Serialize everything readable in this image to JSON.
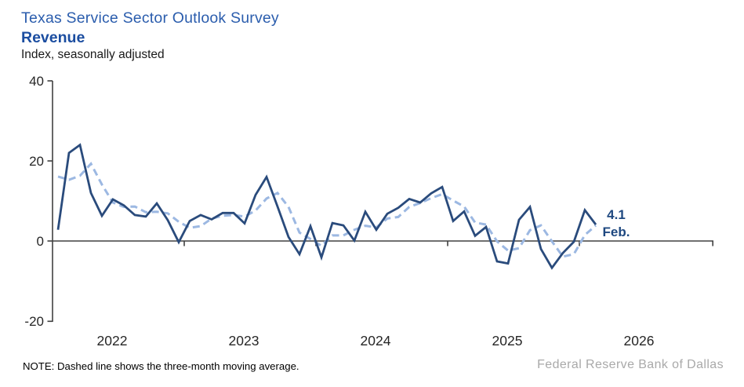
{
  "header": {
    "title": "Texas Service Sector Outlook Survey",
    "subtitle": "Revenue",
    "axis_units_note": "Index, seasonally adjusted"
  },
  "chart_data": {
    "type": "line",
    "title": "Texas Service Sector Outlook Survey — Revenue",
    "ylabel": "Index, seasonally adjusted",
    "ylim": [
      -20,
      40
    ],
    "y_tick_labels": [
      "40",
      "20",
      "0",
      "-20"
    ],
    "x_tick_labels": [
      "2022",
      "2023",
      "2024",
      "2025",
      "2026"
    ],
    "grid": "off",
    "legend": "none (dashed line explained in footnote)",
    "categories": [
      "2022-01",
      "2022-02",
      "2022-03",
      "2022-04",
      "2022-05",
      "2022-06",
      "2022-07",
      "2022-08",
      "2022-09",
      "2022-10",
      "2022-11",
      "2022-12",
      "2023-01",
      "2023-02",
      "2023-03",
      "2023-04",
      "2023-05",
      "2023-06",
      "2023-07",
      "2023-08",
      "2023-09",
      "2023-10",
      "2023-11",
      "2023-12",
      "2024-01",
      "2024-02",
      "2024-03",
      "2024-04",
      "2024-05",
      "2024-06",
      "2024-07",
      "2024-08",
      "2024-09",
      "2024-10",
      "2024-11",
      "2024-12",
      "2025-01",
      "2025-02",
      "2025-03",
      "2025-04",
      "2025-05",
      "2025-06",
      "2025-07",
      "2025-08",
      "2025-09",
      "2025-10",
      "2025-11",
      "2025-12",
      "2026-01",
      "2026-02"
    ],
    "series": [
      {
        "name": "Revenue index (monthly)",
        "style": "solid",
        "color": "#2a4b7c",
        "values": [
          2.8,
          22.0,
          24.0,
          12.0,
          6.3,
          10.4,
          8.9,
          6.5,
          6.1,
          9.4,
          5.2,
          -0.3,
          5.0,
          6.5,
          5.4,
          7.0,
          7.0,
          4.4,
          11.5,
          16.0,
          8.6,
          1.0,
          -3.3,
          3.7,
          -4.1,
          4.5,
          3.9,
          0.1,
          7.3,
          2.8,
          6.8,
          8.3,
          10.5,
          9.6,
          11.9,
          13.5,
          5.0,
          7.4,
          1.3,
          3.5,
          -5.1,
          -5.6,
          5.3,
          8.5,
          -2.0,
          -6.7,
          -3.0,
          -0.2,
          7.7,
          4.1
        ]
      },
      {
        "name": "Three-month moving average",
        "style": "dashed",
        "color": "#9cb8e2",
        "values": [
          16.1,
          15.3,
          16.3,
          19.3,
          14.1,
          9.6,
          8.5,
          8.6,
          7.2,
          7.3,
          6.9,
          4.8,
          3.3,
          3.7,
          5.6,
          6.3,
          6.5,
          6.1,
          7.6,
          10.6,
          12.0,
          8.5,
          2.1,
          0.5,
          -1.2,
          1.4,
          1.4,
          2.8,
          3.8,
          3.4,
          5.6,
          6.0,
          8.5,
          9.5,
          10.7,
          11.7,
          10.1,
          8.6,
          4.6,
          4.1,
          -0.1,
          -2.4,
          -1.8,
          2.7,
          3.9,
          -0.1,
          -3.9,
          -3.3,
          1.5,
          3.9
        ]
      }
    ],
    "annotation": {
      "value": "4.1",
      "month": "Feb."
    },
    "colors": {
      "title_blue": "#2b5dad",
      "subtitle_navy": "#1b4da0",
      "annotation_navy": "#1e4880",
      "axis_gray": "#404040"
    }
  },
  "footer": {
    "note": "NOTE: Dashed line shows the three-month moving average.",
    "attribution": "Federal Reserve Bank of Dallas"
  }
}
